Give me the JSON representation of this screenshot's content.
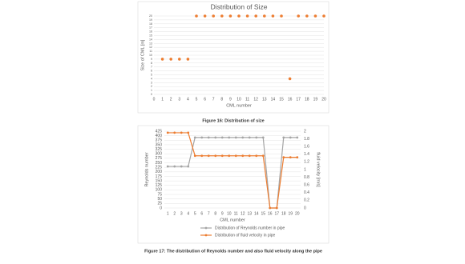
{
  "chart_data": [
    {
      "type": "scatter",
      "title": "Distribution of Size",
      "x_label": "CML number",
      "y_label": "Size of CML [m]",
      "x": [
        1,
        2,
        3,
        4,
        5,
        6,
        7,
        8,
        9,
        10,
        11,
        12,
        13,
        14,
        15,
        16,
        17,
        18,
        19,
        20
      ],
      "values": [
        9,
        9,
        9,
        9,
        20,
        20,
        20,
        20,
        20,
        20,
        20,
        20,
        20,
        20,
        20,
        4,
        20,
        20,
        20,
        20
      ],
      "color": "#ed7d31",
      "xlim": [
        0,
        20
      ],
      "xticks": [
        0,
        1,
        2,
        3,
        4,
        5,
        6,
        7,
        8,
        9,
        10,
        11,
        12,
        13,
        14,
        15,
        16,
        17,
        18,
        19,
        20
      ],
      "ylim": [
        0,
        20
      ],
      "yticks": [
        0,
        1,
        2,
        3,
        4,
        5,
        6,
        7,
        8,
        9,
        10,
        11,
        12,
        13,
        14,
        15,
        16,
        17,
        18,
        19,
        20
      ],
      "grid": true
    },
    {
      "type": "line",
      "x_label": "CML number",
      "y_label": "Reynolds number",
      "y2_label": "fluid velocity [m/s]",
      "categories": [
        "1",
        "2",
        "3",
        "4",
        "5",
        "6",
        "7",
        "8",
        "9",
        "10",
        "11",
        "12",
        "13",
        "14",
        "15",
        "16",
        "17",
        "18",
        "19",
        "20"
      ],
      "series": [
        {
          "name": "Distribution of Reynolds number in pipe",
          "color": "#a5a5a5",
          "values": [
            230,
            230,
            230,
            230,
            390,
            390,
            390,
            390,
            390,
            390,
            390,
            390,
            390,
            390,
            390,
            0,
            0,
            390,
            390,
            390
          ]
        },
        {
          "name": "Distribution of fluid velocity in pipe",
          "color": "#ed7d31",
          "axis": "y2",
          "values": [
            1.96,
            1.96,
            1.96,
            1.96,
            1.36,
            1.36,
            1.36,
            1.36,
            1.36,
            1.36,
            1.36,
            1.36,
            1.36,
            1.36,
            1.36,
            0,
            0,
            1.32,
            1.32,
            1.32
          ]
        }
      ],
      "ylim": [
        0,
        425
      ],
      "yticks": [
        0,
        25,
        50,
        75,
        100,
        125,
        150,
        175,
        200,
        225,
        250,
        275,
        300,
        325,
        350,
        375,
        400,
        425
      ],
      "y2lim": [
        0,
        2
      ],
      "y2ticks": [
        0,
        0.2,
        0.4,
        0.6,
        0.8,
        1,
        1.2,
        1.4,
        1.6,
        1.8,
        2
      ],
      "grid": true,
      "legend": "bottom"
    }
  ],
  "captions": [
    "Figure 16: Distribution of size",
    "Figure 17: The distribution of Reynolds number and also fluid velocity along the pipe"
  ]
}
